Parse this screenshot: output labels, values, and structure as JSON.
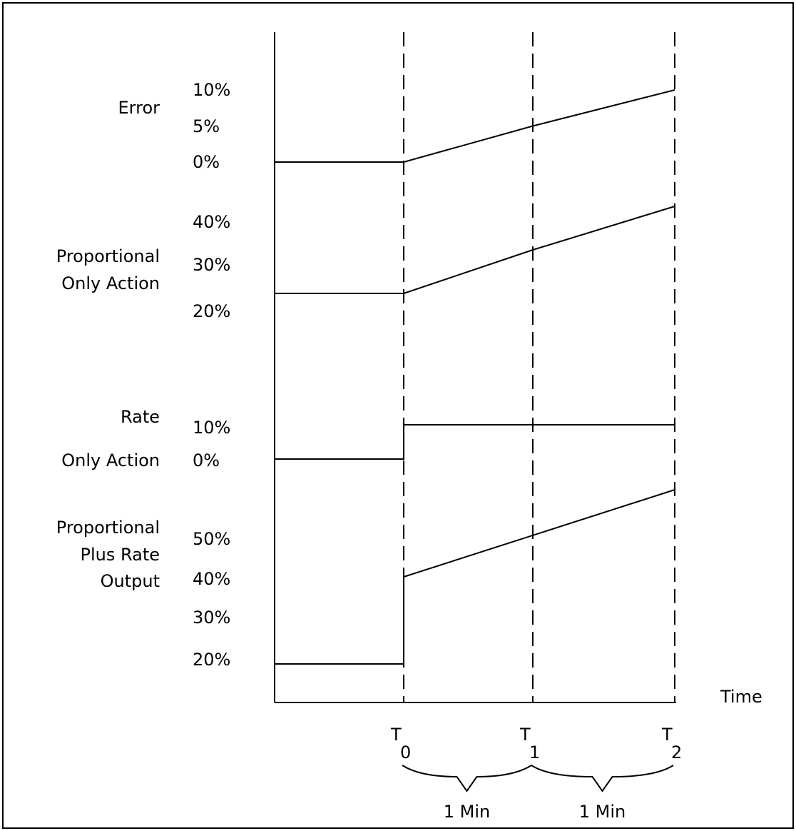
{
  "chart_data": {
    "type": "line",
    "title": "",
    "time_axis_label": "Time",
    "time_points": [
      {
        "name": "T",
        "sub": "0"
      },
      {
        "name": "T",
        "sub": "1"
      },
      {
        "name": "T",
        "sub": "2"
      }
    ],
    "interval_labels": [
      "1 Min",
      "1 Min"
    ],
    "panels": [
      {
        "label_lines": [
          "Error"
        ],
        "ticks": [
          {
            "label": "10%",
            "value": 10
          },
          {
            "label": "5%",
            "value": 5
          },
          {
            "label": "0%",
            "value": 0
          }
        ],
        "points": [
          {
            "t": -1,
            "y": 0
          },
          {
            "t": 0,
            "y": 0
          },
          {
            "t": 1,
            "y": 5
          },
          {
            "t": 2,
            "y": 10
          }
        ]
      },
      {
        "label_lines": [
          "Proportional",
          "Only Action"
        ],
        "ticks": [
          {
            "label": "40%",
            "value": 40
          },
          {
            "label": "30%",
            "value": 30
          },
          {
            "label": "20%",
            "value": 20
          }
        ],
        "points": [
          {
            "t": -1,
            "y": 20
          },
          {
            "t": 0,
            "y": 20
          },
          {
            "t": 1,
            "y": 30
          },
          {
            "t": 2,
            "y": 40
          }
        ]
      },
      {
        "label_lines": [
          "Rate",
          "Only Action"
        ],
        "ticks": [
          {
            "label": "10%",
            "value": 10
          },
          {
            "label": "0%",
            "value": 0
          }
        ],
        "points": [
          {
            "t": -1,
            "y": 0
          },
          {
            "t": 0,
            "y": 0
          },
          {
            "t": 0,
            "y": 10
          },
          {
            "t": 2,
            "y": 10
          }
        ]
      },
      {
        "label_lines": [
          "Proportional",
          "Plus Rate",
          "Output"
        ],
        "ticks": [
          {
            "label": "50%",
            "value": 50
          },
          {
            "label": "40%",
            "value": 40
          },
          {
            "label": "30%",
            "value": 30
          },
          {
            "label": "20%",
            "value": 20
          }
        ],
        "points": [
          {
            "t": -1,
            "y": 20
          },
          {
            "t": 0,
            "y": 20
          },
          {
            "t": 0,
            "y": 40
          },
          {
            "t": 2,
            "y": 60
          }
        ]
      }
    ]
  }
}
